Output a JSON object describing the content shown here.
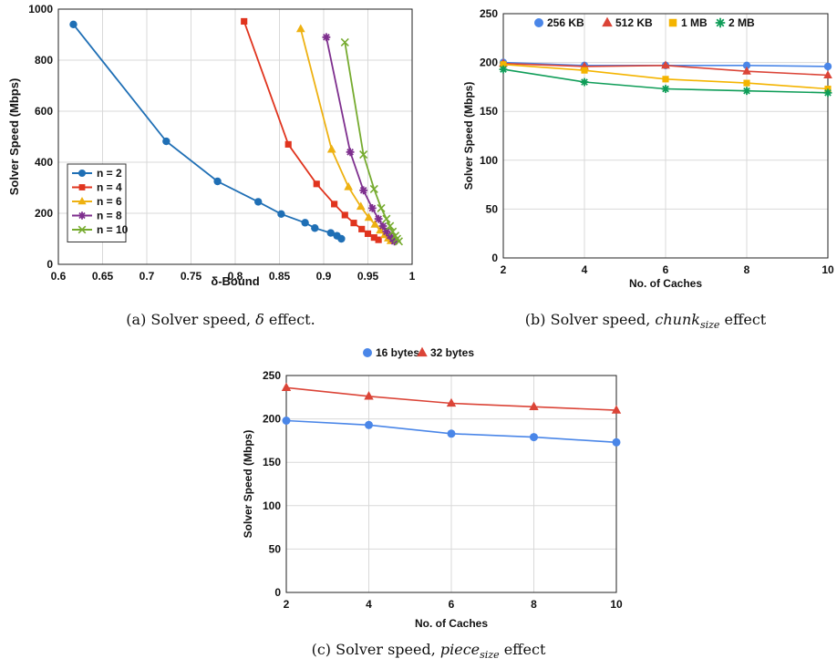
{
  "chart_data": [
    {
      "id": "a",
      "type": "line",
      "caption": {
        "prefix": "(a) Solver speed, ",
        "italic": "δ",
        "suffix": " effect."
      },
      "xlabel": "δ-Bound",
      "ylabel": "Solver Speed (Mbps)",
      "xlim": [
        0.6,
        1.0
      ],
      "ylim": [
        0,
        1000
      ],
      "xticks": [
        0.6,
        0.65,
        0.7,
        0.75,
        0.8,
        0.85,
        0.9,
        0.95,
        1.0
      ],
      "xtick_labels": [
        "0.6",
        "0.65",
        "0.7",
        "0.75",
        "0.8",
        "0.85",
        "0.9",
        "0.95",
        "1"
      ],
      "yticks": [
        0,
        200,
        400,
        600,
        800,
        1000
      ],
      "ytick_labels": [
        "0",
        "200",
        "400",
        "600",
        "800",
        "1000"
      ],
      "grid": true,
      "legend": "center-left",
      "series": [
        {
          "name": "n = 2",
          "color": "#1f6fb5",
          "marker": "circle",
          "x": [
            0.617,
            0.722,
            0.78,
            0.826,
            0.852,
            0.879,
            0.89,
            0.908,
            0.915,
            0.92
          ],
          "y": [
            940,
            482,
            325,
            245,
            197,
            163,
            142,
            123,
            112,
            100
          ]
        },
        {
          "name": "n = 4",
          "color": "#e0341e",
          "marker": "square",
          "x": [
            0.81,
            0.86,
            0.892,
            0.912,
            0.924,
            0.934,
            0.943,
            0.95,
            0.957,
            0.962
          ],
          "y": [
            952,
            470,
            315,
            236,
            193,
            162,
            138,
            120,
            105,
            96
          ]
        },
        {
          "name": "n = 6",
          "color": "#eeb111",
          "marker": "triangle",
          "x": [
            0.874,
            0.909,
            0.928,
            0.942,
            0.951,
            0.958,
            0.964,
            0.969,
            0.973,
            0.976
          ],
          "y": [
            922,
            450,
            303,
            226,
            183,
            156,
            133,
            115,
            102,
            92
          ]
        },
        {
          "name": "n = 8",
          "color": "#7e2f8e",
          "marker": "star",
          "x": [
            0.903,
            0.93,
            0.945,
            0.955,
            0.962,
            0.967,
            0.971,
            0.975,
            0.978,
            0.98
          ],
          "y": [
            890,
            440,
            290,
            220,
            178,
            150,
            128,
            112,
            100,
            90
          ]
        },
        {
          "name": "n = 10",
          "color": "#76ab2f",
          "marker": "x",
          "x": [
            0.924,
            0.945,
            0.957,
            0.965,
            0.971,
            0.975,
            0.978,
            0.981,
            0.983,
            0.985
          ],
          "y": [
            870,
            430,
            295,
            220,
            178,
            150,
            128,
            112,
            100,
            90
          ]
        }
      ]
    },
    {
      "id": "b",
      "type": "line",
      "caption": {
        "prefix": "(b) Solver speed, ",
        "italic": "chunk",
        "sub": "size",
        "suffix": " effect"
      },
      "xlabel": "No. of Caches",
      "ylabel": "Solver Speed (Mbps)",
      "xlim": [
        2,
        10
      ],
      "ylim": [
        0,
        250
      ],
      "xticks": [
        2,
        4,
        6,
        8,
        10
      ],
      "xtick_labels": [
        "2",
        "4",
        "6",
        "8",
        "10"
      ],
      "yticks": [
        0,
        50,
        100,
        150,
        200,
        250
      ],
      "ytick_labels": [
        "0",
        "50",
        "100",
        "150",
        "200",
        "250"
      ],
      "grid": true,
      "legend": "top",
      "x": [
        2,
        4,
        6,
        8,
        10
      ],
      "series": [
        {
          "name": "256 KB",
          "color": "#4a86e8",
          "marker": "circle",
          "values": [
            200,
            197,
            197,
            197,
            196
          ]
        },
        {
          "name": "512 KB",
          "color": "#db4437",
          "marker": "triangle",
          "values": [
            199,
            196,
            197,
            191,
            187
          ]
        },
        {
          "name": "1 MB",
          "color": "#f4b400",
          "marker": "square",
          "values": [
            198,
            192,
            183,
            179,
            173
          ]
        },
        {
          "name": "2 MB",
          "color": "#0f9d58",
          "marker": "star",
          "values": [
            193,
            180,
            173,
            171,
            169
          ]
        }
      ]
    },
    {
      "id": "c",
      "type": "line",
      "caption": {
        "prefix": "(c) Solver speed, ",
        "italic": "piece",
        "sub": "size",
        "suffix": " effect"
      },
      "xlabel": "No. of Caches",
      "ylabel": "Solver Speed (Mbps)",
      "xlim": [
        2,
        10
      ],
      "ylim": [
        0,
        250
      ],
      "xticks": [
        2,
        4,
        6,
        8,
        10
      ],
      "xtick_labels": [
        "2",
        "4",
        "6",
        "8",
        "10"
      ],
      "yticks": [
        0,
        50,
        100,
        150,
        200,
        250
      ],
      "ytick_labels": [
        "0",
        "50",
        "100",
        "150",
        "200",
        "250"
      ],
      "grid": true,
      "legend": "top",
      "x": [
        2,
        4,
        6,
        8,
        10
      ],
      "series": [
        {
          "name": "16 bytes",
          "color": "#4a86e8",
          "marker": "circle",
          "values": [
            198,
            193,
            183,
            179,
            173
          ]
        },
        {
          "name": "32 bytes",
          "color": "#db4437",
          "marker": "triangle",
          "values": [
            236,
            226,
            218,
            214,
            210
          ]
        }
      ]
    }
  ]
}
